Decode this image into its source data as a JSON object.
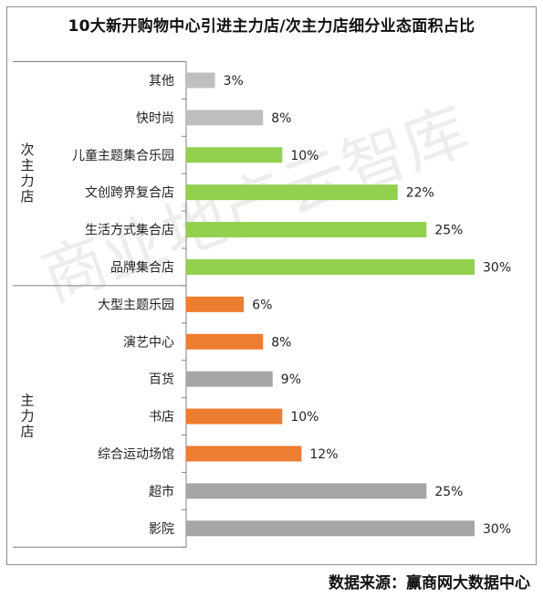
{
  "title": "10大新开购物中心引进主力店/次主力店细分业态面积占比",
  "source": "数据来源：赢商网大数据中心",
  "watermark": "商业地产云智库",
  "chart_data": {
    "type": "bar",
    "orientation": "horizontal",
    "title": "10大新开购物中心引进主力店/次主力店细分业态面积占比",
    "xlabel": "",
    "ylabel": "",
    "xlim": [
      0,
      30
    ],
    "grid": false,
    "groups": [
      {
        "name": "次主力店",
        "categories": [
          "其他",
          "快时尚",
          "儿童主题集合乐园",
          "文创跨界复合店",
          "生活方式集合店",
          "品牌集合店"
        ]
      },
      {
        "name": "主力店",
        "categories": [
          "大型主题乐园",
          "演艺中心",
          "百货",
          "书店",
          "综合运动场馆",
          "超市",
          "影院"
        ]
      }
    ],
    "categories": [
      "其他",
      "快时尚",
      "儿童主题集合乐园",
      "文创跨界复合店",
      "生活方式集合店",
      "品牌集合店",
      "大型主题乐园",
      "演艺中心",
      "百货",
      "书店",
      "综合运动场馆",
      "超市",
      "影院"
    ],
    "values": [
      3,
      8,
      10,
      22,
      25,
      30,
      6,
      8,
      9,
      10,
      12,
      25,
      30
    ],
    "labels": [
      "3%",
      "8%",
      "10%",
      "22%",
      "25%",
      "30%",
      "6%",
      "8%",
      "9%",
      "10%",
      "12%",
      "25%",
      "30%"
    ],
    "bar_colors": [
      "#bfbfbf",
      "#bfbfbf",
      "#92d050",
      "#92d050",
      "#92d050",
      "#92d050",
      "#ed7d31",
      "#ed7d31",
      "#a6a6a6",
      "#ed7d31",
      "#ed7d31",
      "#a6a6a6",
      "#a6a6a6"
    ]
  }
}
